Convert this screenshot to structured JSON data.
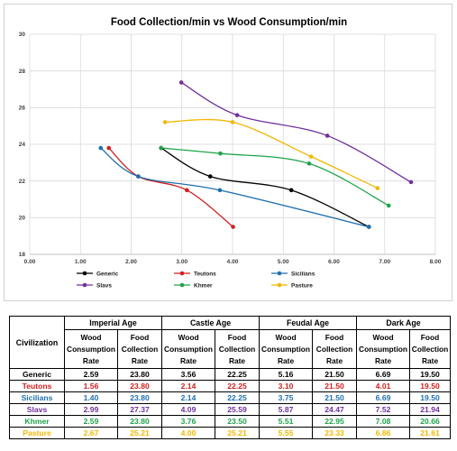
{
  "chart_data": {
    "type": "line",
    "title": "Food Collection/min vs Wood Consumption/min",
    "xlabel": "",
    "ylabel": "",
    "xlim": [
      0,
      8
    ],
    "ylim": [
      18,
      30
    ],
    "x_ticks": [
      "0.00",
      "1.00",
      "2.00",
      "3.00",
      "4.00",
      "5.00",
      "6.00",
      "7.00",
      "8.00"
    ],
    "y_ticks": [
      "18",
      "20",
      "22",
      "24",
      "26",
      "28",
      "30"
    ],
    "grid": true,
    "legend_position": "bottom",
    "smooth": true,
    "series": [
      {
        "name": "Generic",
        "color": "#000000",
        "x": [
          2.59,
          3.56,
          5.16,
          6.69
        ],
        "y": [
          23.8,
          22.25,
          21.5,
          19.5
        ]
      },
      {
        "name": "Teutons",
        "color": "#d11f1f",
        "x": [
          1.56,
          2.14,
          3.1,
          4.01
        ],
        "y": [
          23.8,
          22.25,
          21.5,
          19.5
        ]
      },
      {
        "name": "Sicilians",
        "color": "#1f6fad",
        "x": [
          1.4,
          2.14,
          3.75,
          6.69
        ],
        "y": [
          23.8,
          22.25,
          21.5,
          19.5
        ]
      },
      {
        "name": "Slavs",
        "color": "#7030a0",
        "x": [
          2.99,
          4.09,
          5.87,
          7.52
        ],
        "y": [
          27.37,
          25.59,
          24.47,
          21.94
        ]
      },
      {
        "name": "Khmer",
        "color": "#1fa34a",
        "x": [
          2.59,
          3.76,
          5.51,
          7.08
        ],
        "y": [
          23.8,
          23.5,
          22.95,
          20.66
        ]
      },
      {
        "name": "Pasture",
        "color": "#f2b705",
        "x": [
          2.67,
          4.0,
          5.55,
          6.86
        ],
        "y": [
          25.21,
          25.21,
          23.33,
          21.61
        ]
      }
    ]
  },
  "table": {
    "corner_label": "Civilization",
    "groups": [
      "Imperial Age",
      "Castle Age",
      "Feudal Age",
      "Dark Age"
    ],
    "sub_headers": [
      "Wood Consumption Rate",
      "Food Collection Rate"
    ],
    "rows": [
      {
        "civ": "Generic",
        "color": "#000000",
        "values": [
          "2.59",
          "23.80",
          "3.56",
          "22.25",
          "5.16",
          "21.50",
          "6.69",
          "19.50"
        ]
      },
      {
        "civ": "Teutons",
        "color": "#d11f1f",
        "values": [
          "1.56",
          "23.80",
          "2.14",
          "22.25",
          "3.10",
          "21.50",
          "4.01",
          "19.50"
        ]
      },
      {
        "civ": "Sicilians",
        "color": "#1f6fad",
        "values": [
          "1.40",
          "23.80",
          "2.14",
          "22.25",
          "3.75",
          "21.50",
          "6.69",
          "19.50"
        ]
      },
      {
        "civ": "Slavs",
        "color": "#7030a0",
        "values": [
          "2.99",
          "27.37",
          "4.09",
          "25.59",
          "5.87",
          "24.47",
          "7.52",
          "21.94"
        ]
      },
      {
        "civ": "Khmer",
        "color": "#1fa34a",
        "values": [
          "2.59",
          "23.80",
          "3.76",
          "23.50",
          "5.51",
          "22.95",
          "7.08",
          "20.66"
        ]
      },
      {
        "civ": "Pasture",
        "color": "#f2b705",
        "values": [
          "2.67",
          "25.21",
          "4.00",
          "25.21",
          "5.55",
          "23.33",
          "6.86",
          "21.61"
        ]
      }
    ]
  }
}
